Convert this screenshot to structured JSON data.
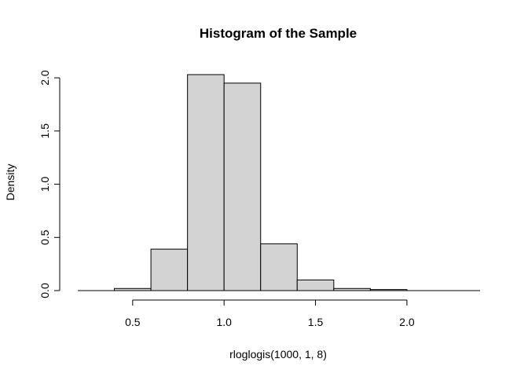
{
  "chart_data": {
    "type": "bar",
    "title": "Histogram of the Sample",
    "xlabel": "rloglogis(1000, 1, 8)",
    "ylabel": "Density",
    "bins": [
      {
        "start": 0.4,
        "end": 0.6,
        "density": 0.02
      },
      {
        "start": 0.6,
        "end": 0.8,
        "density": 0.39
      },
      {
        "start": 0.8,
        "end": 1.0,
        "density": 2.03
      },
      {
        "start": 1.0,
        "end": 1.2,
        "density": 1.95
      },
      {
        "start": 1.2,
        "end": 1.4,
        "density": 0.44
      },
      {
        "start": 1.4,
        "end": 1.6,
        "density": 0.1
      },
      {
        "start": 1.6,
        "end": 1.8,
        "density": 0.02
      },
      {
        "start": 1.8,
        "end": 2.0,
        "density": 0.01
      }
    ],
    "xlim": [
      0.2,
      2.4
    ],
    "ylim": [
      0,
      2.03
    ],
    "x_ticks": [
      {
        "value": 0.5,
        "label": "0.5"
      },
      {
        "value": 1.0,
        "label": "1.0"
      },
      {
        "value": 1.5,
        "label": "1.5"
      },
      {
        "value": 2.0,
        "label": "2.0"
      }
    ],
    "y_ticks": [
      {
        "value": 0.0,
        "label": "0.0"
      },
      {
        "value": 0.5,
        "label": "0.5"
      },
      {
        "value": 1.0,
        "label": "1.0"
      },
      {
        "value": 1.5,
        "label": "1.5"
      },
      {
        "value": 2.0,
        "label": "2.0"
      }
    ],
    "bar_color": "#d3d3d3",
    "grid": false,
    "legend": "none"
  }
}
